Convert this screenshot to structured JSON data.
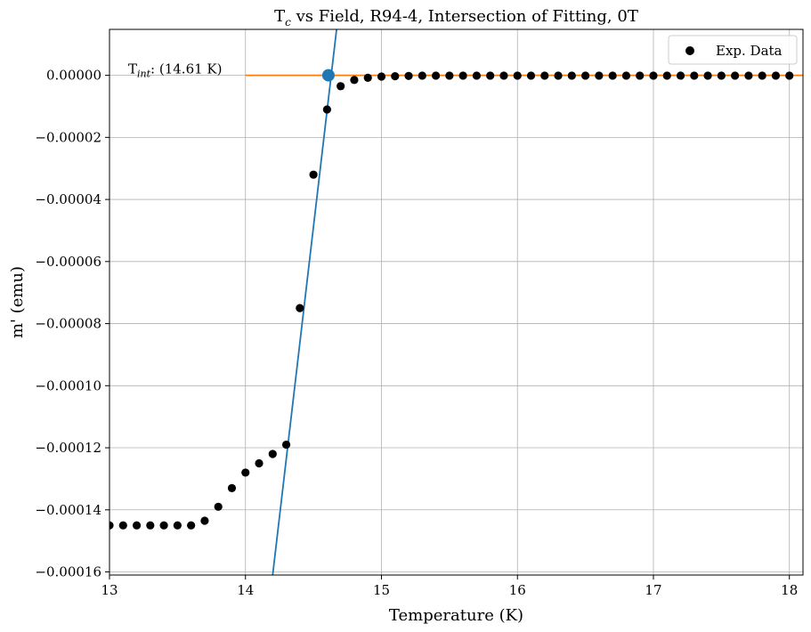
{
  "chart_data": {
    "type": "scatter",
    "title_main": "T",
    "title_sub": "c",
    "title_rest": " vs Field, R94-4, Intersection of Fitting, 0T",
    "xlabel": "Temperature (K)",
    "ylabel": "m' (emu)",
    "xlim": [
      13.0,
      18.1
    ],
    "ylim": [
      -0.000161,
      1.48e-05
    ],
    "xticks": [
      13,
      14,
      15,
      16,
      17,
      18
    ],
    "yticks": [
      0,
      -2e-05,
      -4e-05,
      -6e-05,
      -8e-05,
      -0.0001,
      -0.00012,
      -0.00014,
      -0.00016
    ],
    "xtick_labels": [
      "13",
      "14",
      "15",
      "16",
      "17",
      "18"
    ],
    "ytick_labels": [
      "0.00000",
      "−0.00002",
      "−0.00004",
      "−0.00006",
      "−0.00008",
      "−0.00010",
      "−0.00012",
      "−0.00014",
      "−0.00016"
    ],
    "grid": true,
    "legend_position": "top-right",
    "series": [
      {
        "name": "Exp. Data",
        "kind": "scatter",
        "color": "#000000",
        "x": [
          13.0,
          13.1,
          13.2,
          13.3,
          13.4,
          13.5,
          13.6,
          13.7,
          13.8,
          13.9,
          14.0,
          14.1,
          14.2,
          14.3,
          14.4,
          14.5,
          14.6,
          14.7,
          14.8,
          14.9,
          15.0,
          15.1,
          15.2,
          15.3,
          15.4,
          15.5,
          15.6,
          15.7,
          15.8,
          15.9,
          16.0,
          16.1,
          16.2,
          16.3,
          16.4,
          16.5,
          16.6,
          16.7,
          16.8,
          16.9,
          17.0,
          17.1,
          17.2,
          17.3,
          17.4,
          17.5,
          17.6,
          17.7,
          17.8,
          17.9,
          18.0
        ],
        "y": [
          -0.000145,
          -0.000145,
          -0.000145,
          -0.000145,
          -0.000145,
          -0.000145,
          -0.000145,
          -0.0001435,
          -0.000139,
          -0.000133,
          -0.000128,
          -0.000125,
          -0.000122,
          -0.000119,
          -7.5e-05,
          -3.2e-05,
          -1.1e-05,
          -3.5e-06,
          -1.5e-06,
          -8e-07,
          -4e-07,
          -3e-07,
          -2e-07,
          -1e-07,
          -1e-07,
          -1e-07,
          -1e-07,
          -1e-07,
          -1e-07,
          -1e-07,
          -1e-07,
          -1e-07,
          -1e-07,
          -1e-07,
          -1e-07,
          -1e-07,
          -1e-07,
          -1e-07,
          -1e-07,
          -1e-07,
          -1e-07,
          -1e-07,
          -1e-07,
          -1e-07,
          -1e-07,
          -1e-07,
          -1e-07,
          -1e-07,
          -1e-07,
          -1e-07,
          -1e-07
        ]
      },
      {
        "kind": "line",
        "color": "#1f77b4",
        "x": [
          14.2,
          14.67
        ],
        "y": [
          -0.000161,
          1.48e-05
        ]
      },
      {
        "kind": "line",
        "color": "#ff7f0e",
        "x": [
          14.0,
          18.1
        ],
        "y": [
          0.0,
          0.0
        ]
      }
    ],
    "intersection": {
      "x": 14.61,
      "y": 0.0,
      "color": "#1f77b4",
      "label_main": "T",
      "label_sub": "int",
      "label_rest": ": (14.61 K)"
    }
  }
}
